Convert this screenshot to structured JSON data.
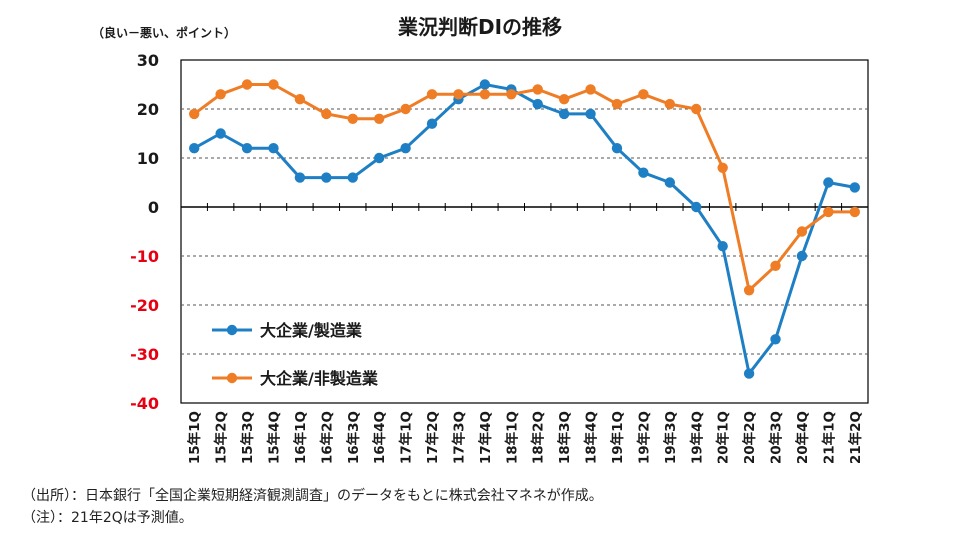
{
  "chart_data": {
    "type": "line",
    "title": "業況判断DIの推移",
    "ylabel": "（良い－悪い、ポイント）",
    "xlabel": "",
    "ylim": [
      -40,
      30
    ],
    "yticks": [
      30,
      20,
      10,
      0,
      -10,
      -20,
      -30,
      -40
    ],
    "categories": [
      "15年1Q",
      "15年2Q",
      "15年3Q",
      "15年4Q",
      "16年1Q",
      "16年2Q",
      "16年3Q",
      "16年4Q",
      "17年1Q",
      "17年2Q",
      "17年3Q",
      "17年4Q",
      "18年1Q",
      "18年2Q",
      "18年3Q",
      "18年4Q",
      "19年1Q",
      "19年2Q",
      "19年3Q",
      "19年4Q",
      "20年1Q",
      "20年2Q",
      "20年3Q",
      "20年4Q",
      "21年1Q",
      "21年2Q"
    ],
    "grid": true,
    "legend_placement": "bottom-left",
    "series": [
      {
        "name": "大企業/製造業",
        "color": "#1f7fc4",
        "values": [
          12,
          15,
          12,
          12,
          6,
          6,
          6,
          10,
          12,
          17,
          22,
          25,
          24,
          21,
          19,
          19,
          12,
          7,
          5,
          0,
          -8,
          -34,
          -27,
          -10,
          5,
          4
        ]
      },
      {
        "name": "大企業/非製造業",
        "color": "#ee7d26",
        "values": [
          19,
          23,
          25,
          25,
          22,
          19,
          18,
          18,
          20,
          23,
          23,
          23,
          23,
          24,
          22,
          24,
          21,
          23,
          21,
          20,
          8,
          -17,
          -12,
          -5,
          -1,
          -1
        ]
      }
    ],
    "negative_tick_color": "#e60012"
  },
  "notes": {
    "source": "（出所）：日本銀行「全国企業短期経済観測調査」のデータをもとに株式会社マネネが作成。",
    "note": "（注）：21年2Qは予測値。"
  }
}
